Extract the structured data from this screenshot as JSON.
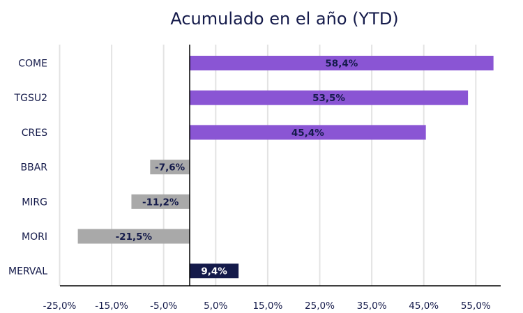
{
  "chart_data": {
    "type": "bar",
    "orientation": "horizontal",
    "title": "Acumulado en el año (YTD)",
    "categories": [
      "COME",
      "TGSU2",
      "CRES",
      "BBAR",
      "MIRG",
      "MORI",
      "MERVAL"
    ],
    "values": [
      58.4,
      53.5,
      45.4,
      -7.6,
      -11.2,
      -21.5,
      9.4
    ],
    "value_labels": [
      "58,4%",
      "53,5%",
      "45,4%",
      "-7,6%",
      "-11,2%",
      "-21,5%",
      "9,4%"
    ],
    "bar_colors": [
      "#8a55d4",
      "#8a55d4",
      "#8a55d4",
      "#a9a9a9",
      "#a9a9a9",
      "#a9a9a9",
      "#141a4a"
    ],
    "label_colors": [
      "#141a4a",
      "#141a4a",
      "#141a4a",
      "#141a4a",
      "#141a4a",
      "#141a4a",
      "#ffffff"
    ],
    "x_ticks": [
      -25,
      -15,
      -5,
      5,
      15,
      25,
      35,
      45,
      55
    ],
    "x_tick_labels": [
      "-25,0%",
      "-15,0%",
      "-5,0%",
      "5,0%",
      "15,0%",
      "25,0%",
      "35,0%",
      "45,0%",
      "55,0%"
    ],
    "xlim": [
      -25,
      59
    ],
    "grid": true,
    "legend": "none",
    "xlabel": "",
    "ylabel": ""
  },
  "colors": {
    "text": "#141a4a",
    "grid": "#e3e3e3",
    "axis": "#000000"
  }
}
